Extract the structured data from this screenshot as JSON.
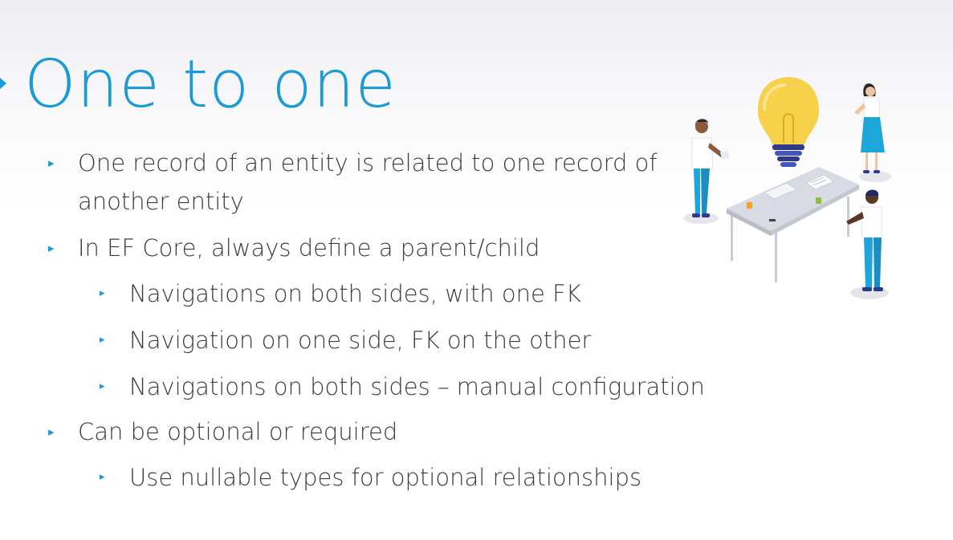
{
  "slide": {
    "title": "One to one",
    "bullets": [
      {
        "level": 1,
        "lines": [
          "One record of an entity is related to one record of",
          "another entity"
        ]
      },
      {
        "level": 1,
        "lines": [
          "In EF Core, always define a parent/child"
        ]
      },
      {
        "level": 2,
        "lines": [
          "Navigations on both sides, with one FK"
        ]
      },
      {
        "level": 2,
        "lines": [
          "Navigation on one side, FK on the other"
        ]
      },
      {
        "level": 2,
        "lines": [
          "Navigations on both sides – manual configuration"
        ]
      },
      {
        "level": 1,
        "lines": [
          "Can be optional or required"
        ]
      },
      {
        "level": 2,
        "lines": [
          "Use nullable types for optional relationships"
        ]
      }
    ],
    "bullet_glyph": "▸"
  },
  "colors": {
    "accent": "#1a9ad6",
    "text": "#3c3c3c",
    "bulb": "#f7d14a",
    "shirt": "#ffffff",
    "pants": "#1ea5d9",
    "table": "#c9ccd6"
  },
  "illustration": {
    "icon": "lightbulb-team-illustration"
  }
}
